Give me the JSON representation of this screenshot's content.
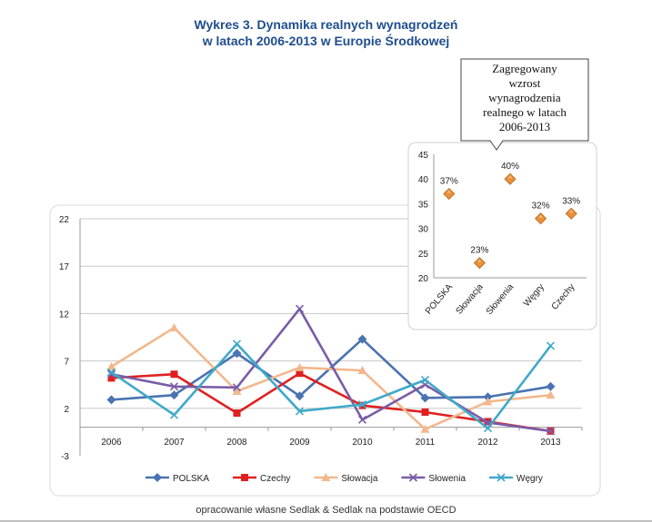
{
  "title_line1": "Wykres 3. Dynamika realnych wynagrodzeń",
  "title_line2": "w latach 2006-2013 w Europie Środkowej",
  "source": "opracowanie własne Sedlak & Sedlak na podstawie OECD",
  "chart_data": [
    {
      "type": "line",
      "categories": [
        "2006",
        "2007",
        "2008",
        "2009",
        "2010",
        "2011",
        "2012",
        "2013"
      ],
      "ylim": [
        -3,
        22
      ],
      "yticks": [
        -3,
        2,
        7,
        12,
        17,
        22
      ],
      "grid": true,
      "legend_position": "bottom",
      "series": [
        {
          "name": "POLSKA",
          "color": "#4a73b1",
          "marker": "diamond",
          "values": [
            2.9,
            3.4,
            7.8,
            3.3,
            9.3,
            3.1,
            3.2,
            4.3
          ]
        },
        {
          "name": "Czechy",
          "color": "#e02020",
          "marker": "square",
          "values": [
            5.2,
            5.6,
            1.5,
            5.7,
            2.3,
            1.6,
            0.6,
            -0.4
          ]
        },
        {
          "name": "Słowacja",
          "color": "#f2b88d",
          "marker": "triangle",
          "values": [
            6.4,
            10.5,
            3.8,
            6.3,
            6.0,
            -0.2,
            2.7,
            3.4
          ]
        },
        {
          "name": "Słowenia",
          "color": "#7a5ca6",
          "marker": "x",
          "values": [
            5.6,
            4.3,
            4.2,
            12.5,
            0.8,
            4.5,
            0.5,
            -0.4
          ]
        },
        {
          "name": "Węgry",
          "color": "#3fa9c9",
          "marker": "x",
          "values": [
            5.8,
            1.3,
            8.8,
            1.7,
            2.4,
            5.0,
            -0.1,
            8.6
          ]
        }
      ]
    },
    {
      "type": "scatter",
      "title": "Zagregowany wzrost wynagrodzenia realnego w latach 2006-2013",
      "title_lines": [
        "Zagregowany",
        "wzrost",
        "wynagrodzenia",
        "realnego w latach",
        "2006-2013"
      ],
      "categories": [
        "POLSKA",
        "Słowacja",
        "Słowenia",
        "Węgry",
        "Czechy"
      ],
      "values": [
        37,
        23,
        40,
        32,
        33
      ],
      "labels": [
        "37%",
        "23%",
        "40%",
        "32%",
        "33%"
      ],
      "marker_color": "#e8913a",
      "ylim": [
        20,
        45
      ],
      "yticks": [
        20,
        25,
        30,
        35,
        40,
        45
      ]
    }
  ]
}
